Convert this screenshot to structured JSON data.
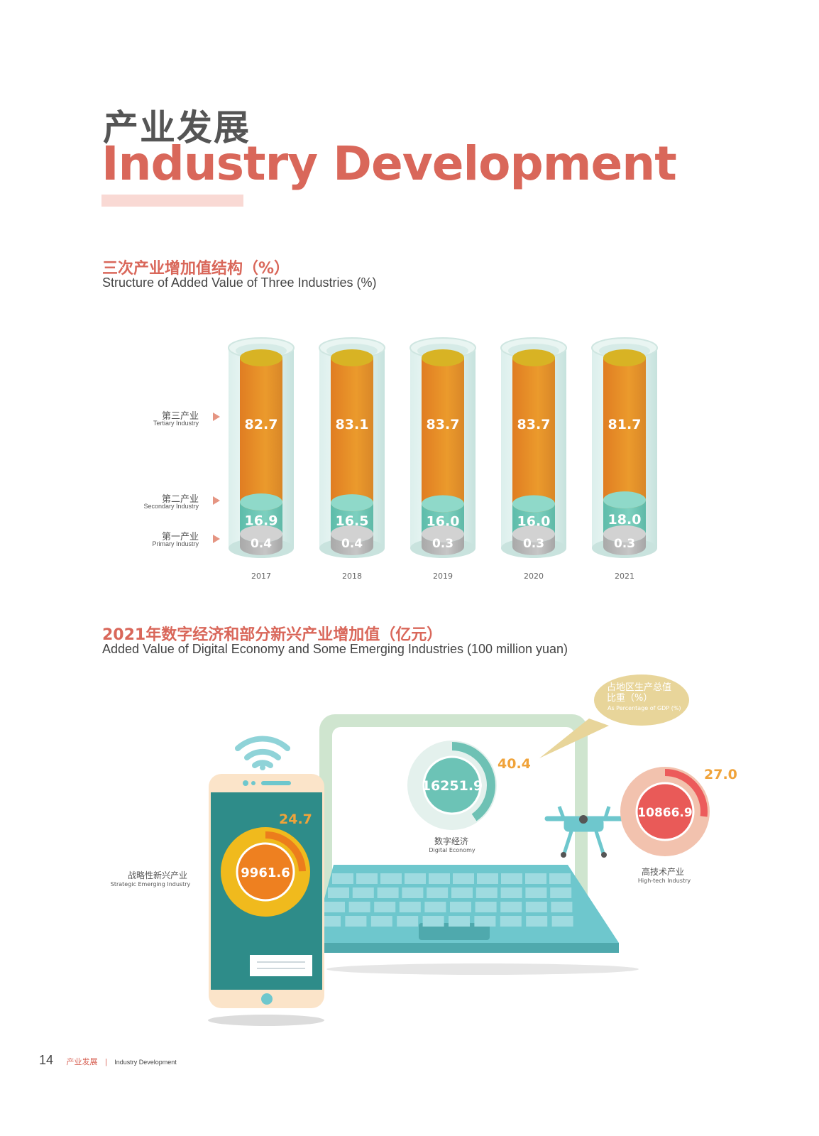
{
  "header": {
    "title_cn": "产业发展",
    "title_en": "Industry Development"
  },
  "section1": {
    "title_cn": "三次产业增加值结构（%）",
    "title_en": "Structure of Added Value of Three Industries (%)"
  },
  "legend": {
    "tertiary_cn": "第三产业",
    "tertiary_en": "Tertiary Industry",
    "secondary_cn": "第二产业",
    "secondary_en": "Secondary Industry",
    "primary_cn": "第一产业",
    "primary_en": "Primary Industry"
  },
  "section2": {
    "title_cn": "2021年数字经济和部分新兴产业增加值（亿元）",
    "title_en": "Added Value of Digital Economy and Some Emerging Industries (100 million yuan)"
  },
  "bubble": {
    "line1": "占地区生产总值",
    "line2": "比重（%）",
    "line3": "As Percentage of GDP (%)"
  },
  "footer": {
    "page": "14",
    "cn": "产业发展",
    "sep": "|",
    "en": "Industry Development"
  },
  "colors": {
    "accent": "#d9675a",
    "tertiary": "#e7912a",
    "secondary": "#6cc6b4",
    "primary": "#b9b9b9",
    "highlight": "#f0a33a"
  },
  "chart_data": [
    {
      "type": "bar",
      "stacked": true,
      "title": "三次产业增加值结构（%）",
      "subtitle": "Structure of Added Value of Three Industries (%)",
      "categories": [
        "2017",
        "2018",
        "2019",
        "2020",
        "2021"
      ],
      "series": [
        {
          "name": "第一产业 Primary Industry",
          "values": [
            0.4,
            0.4,
            0.3,
            0.3,
            0.3
          ]
        },
        {
          "name": "第二产业 Secondary Industry",
          "values": [
            16.9,
            16.5,
            16.0,
            16.0,
            18.0
          ]
        },
        {
          "name": "第三产业 Tertiary Industry",
          "values": [
            82.7,
            83.1,
            83.7,
            83.7,
            81.7
          ]
        }
      ]
    },
    {
      "type": "pie",
      "title": "2021年数字经济和部分新兴产业增加值（亿元）",
      "subtitle": "Added Value of Digital Economy and Some Emerging Industries (100 million yuan)",
      "items": [
        {
          "name_cn": "战略性新兴产业",
          "name_en": "Strategic Emerging Industry",
          "value": "9961.6",
          "pct": "24.7"
        },
        {
          "name_cn": "数字经济",
          "name_en": "Digital Economy",
          "value": "16251.9",
          "pct": "40.4"
        },
        {
          "name_cn": "高技术产业",
          "name_en": "High-tech Industry",
          "value": "10866.9",
          "pct": "27.0"
        }
      ]
    }
  ]
}
